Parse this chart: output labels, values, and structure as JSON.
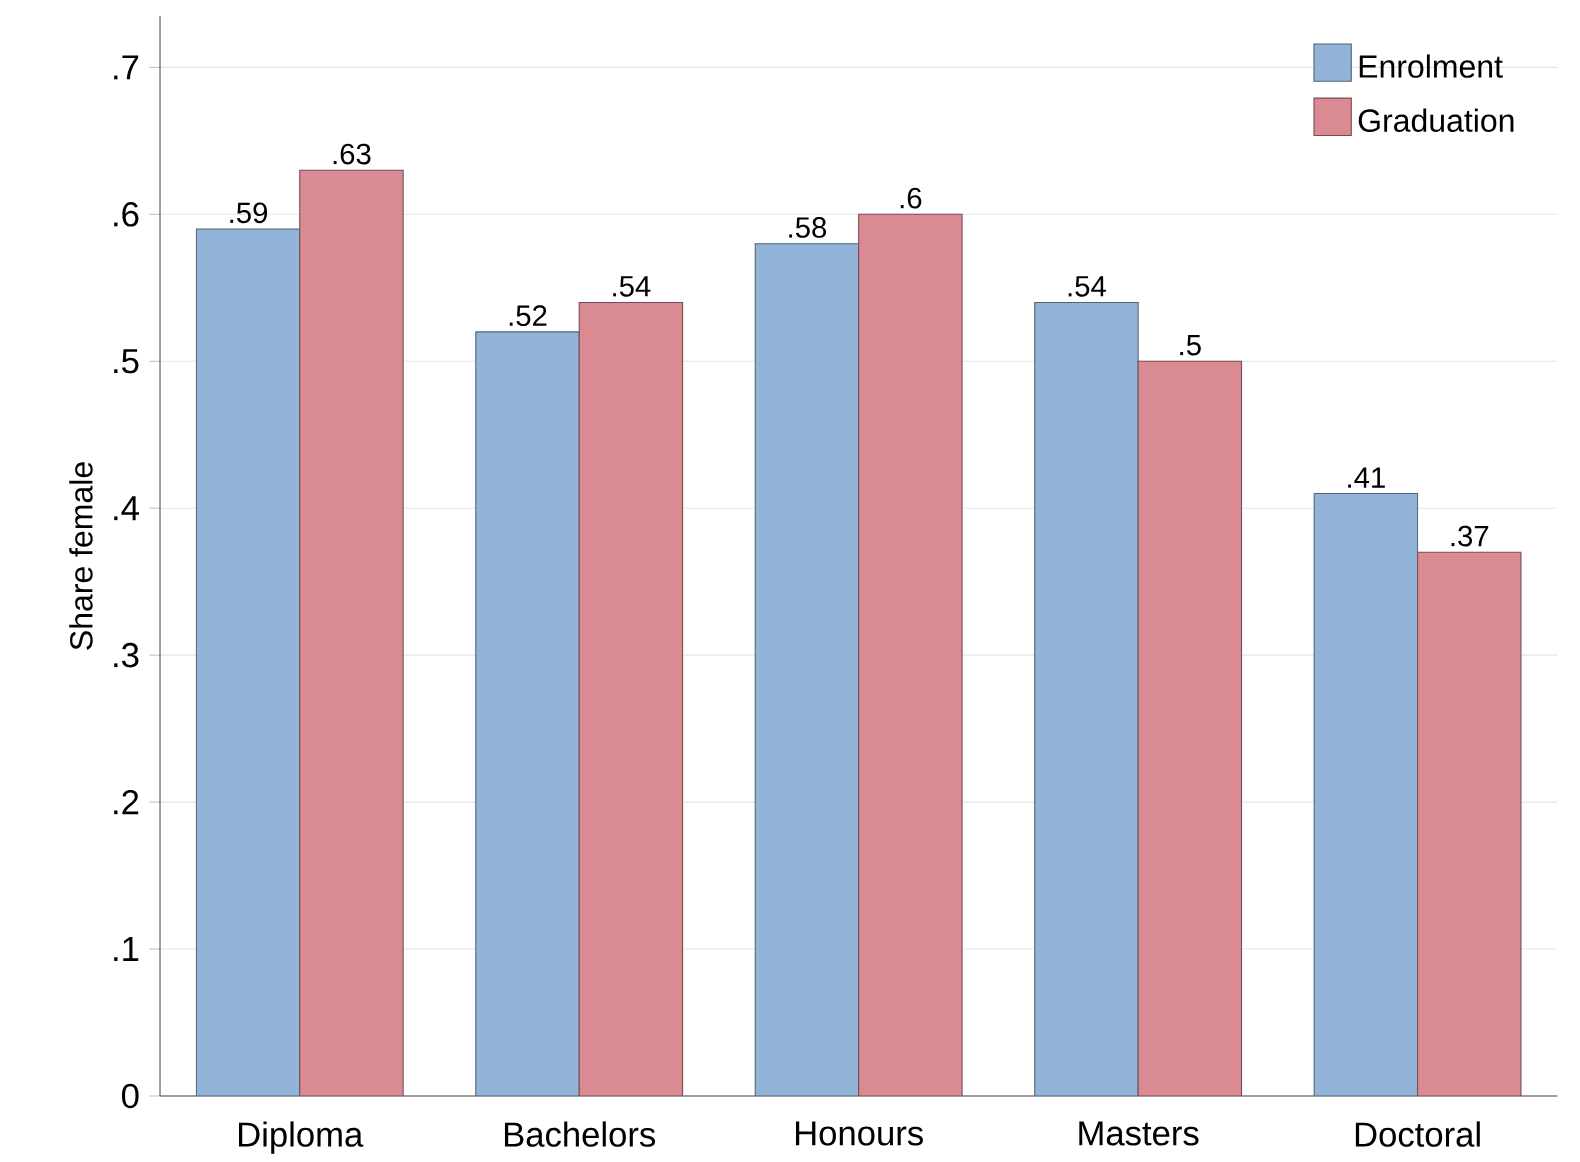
{
  "chart_data": {
    "type": "bar",
    "ylabel": "Share female",
    "categories": [
      "Diploma",
      "Bachelors",
      "Honours",
      "Masters",
      "Doctoral"
    ],
    "series": [
      {
        "name": "Enrolment",
        "color": "#92b4d8",
        "values": [
          0.59,
          0.52,
          0.58,
          0.54,
          0.41
        ],
        "value_labels": [
          ".59",
          ".52",
          ".58",
          ".54",
          ".41"
        ]
      },
      {
        "name": "Graduation",
        "color": "#d98a93",
        "values": [
          0.63,
          0.54,
          0.6,
          0.5,
          0.37
        ],
        "value_labels": [
          ".63",
          ".54",
          ".6",
          ".5",
          ".37"
        ]
      }
    ],
    "ylim": [
      0,
      0.735
    ],
    "yticks": [
      0,
      {
        "value": 0.1,
        "label": ".1"
      },
      {
        "value": 0.2,
        "label": ".2"
      },
      {
        "value": 0.3,
        "label": ".3"
      },
      {
        "value": 0.4,
        "label": ".4"
      },
      {
        "value": 0.5,
        "label": ".5"
      },
      {
        "value": 0.6,
        "label": ".6"
      },
      {
        "value": 0.7,
        "label": ".7"
      }
    ],
    "grid": "y",
    "legend": "top right"
  }
}
